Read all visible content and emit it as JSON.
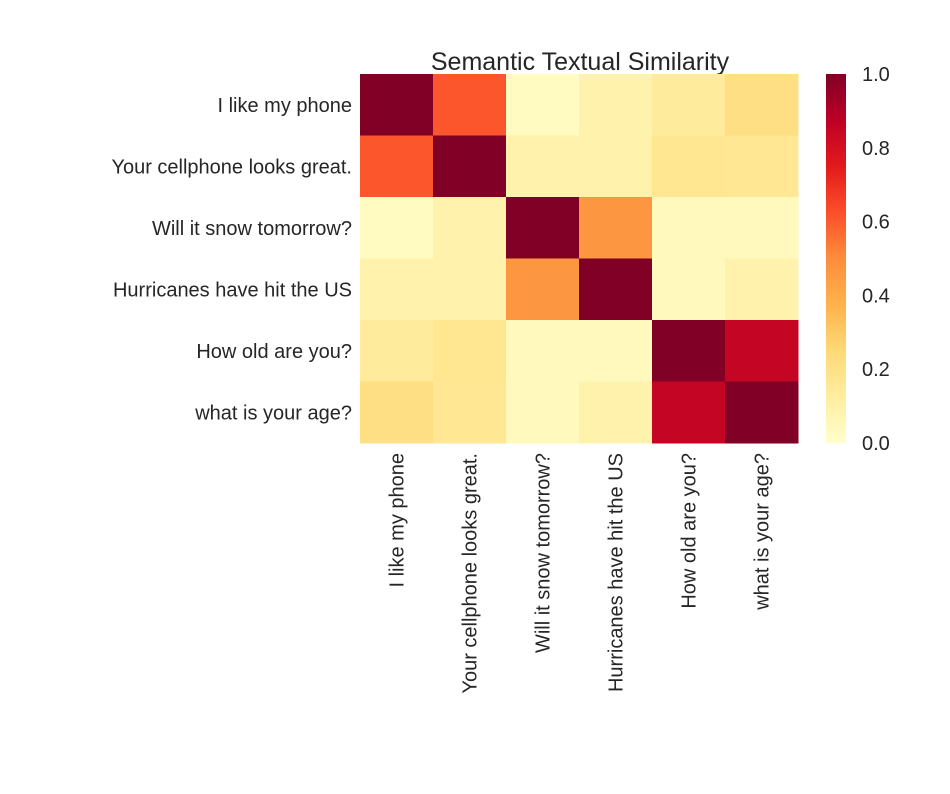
{
  "chart_data": {
    "type": "heatmap",
    "title": "Semantic Textual Similarity",
    "xlabel": "",
    "ylabel": "",
    "x_categories": [
      "I like my phone",
      "Your cellphone looks great.",
      "Will it snow tomorrow?",
      "Hurricanes have hit the US",
      "How old are you?",
      "what is your age?"
    ],
    "y_categories": [
      "I like my phone",
      "Your cellphone looks great.",
      "Will it snow tomorrow?",
      "Hurricanes have hit the US",
      "How old are you?",
      "what is your age?"
    ],
    "values": [
      [
        1.0,
        0.61,
        0.03,
        0.09,
        0.14,
        0.21
      ],
      [
        0.61,
        1.0,
        0.09,
        0.09,
        0.17,
        0.16
      ],
      [
        0.03,
        0.09,
        1.0,
        0.47,
        0.04,
        0.04
      ],
      [
        0.09,
        0.09,
        0.47,
        1.0,
        0.04,
        0.09
      ],
      [
        0.14,
        0.17,
        0.04,
        0.04,
        1.0,
        0.85
      ],
      [
        0.21,
        0.16,
        0.04,
        0.09,
        0.85,
        1.0
      ]
    ],
    "colorbar": {
      "min": 0.0,
      "max": 1.0,
      "ticks": [
        "0.0",
        "0.2",
        "0.4",
        "0.6",
        "0.8",
        "1.0"
      ],
      "colormap": "YlOrRd"
    },
    "grid": false,
    "colors": {
      "text": "#262626",
      "background": "#ffffff"
    }
  }
}
